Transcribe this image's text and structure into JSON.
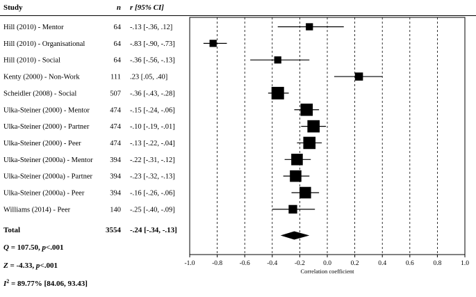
{
  "headers": {
    "study": "Study",
    "n": "n",
    "r": "r [95% CI]"
  },
  "total": {
    "label": "Total",
    "n": "3554",
    "r_text": "-.24 [-.34, -.13]",
    "r": -0.24,
    "lo": -0.34,
    "hi": -0.13
  },
  "stats": {
    "q": {
      "sym": "Q",
      "rest": " = 107.50, ",
      "p": "p",
      "tail": "<.001"
    },
    "z": {
      "sym": "Z",
      "rest": " = -4.33, ",
      "p": "p",
      "tail": "<.001"
    },
    "i2": {
      "sym": "I",
      "sup": "2",
      "rest": " = 89.77% [84.06, 93.43]"
    }
  },
  "chart_data": {
    "type": "forest",
    "xlabel": "Correlation coefficient",
    "xlim": [
      -1.0,
      1.0
    ],
    "ticks": [
      "-1.0",
      "-0.8",
      "-0.6",
      "-0.4",
      "-0.2",
      "0.0",
      "0.2",
      "0.4",
      "0.6",
      "0.8",
      "1.0"
    ],
    "grid": "dashed vertical at every tick",
    "studies": [
      {
        "label": "Hill (2010) - Mentor",
        "n": "64",
        "r_text": "-.13 [-.36, .12]",
        "r": -0.13,
        "lo": -0.36,
        "hi": 0.12
      },
      {
        "label": "Hill (2010) - Organisational",
        "n": "64",
        "r_text": "-.83 [-.90, -.73]",
        "r": -0.83,
        "lo": -0.9,
        "hi": -0.73
      },
      {
        "label": "Hill (2010) - Social",
        "n": "64",
        "r_text": "-.36 [-.56, -.13]",
        "r": -0.36,
        "lo": -0.56,
        "hi": -0.13
      },
      {
        "label": "Kenty (2000) - Non-Work",
        "n": "111",
        "r_text": ".23 [.05, .40]",
        "r": 0.23,
        "lo": 0.05,
        "hi": 0.4
      },
      {
        "label": "Scheidler (2008) - Social",
        "n": "507",
        "r_text": "-.36 [-.43, -.28]",
        "r": -0.36,
        "lo": -0.43,
        "hi": -0.28
      },
      {
        "label": "Ulka-Steiner (2000) - Mentor",
        "n": "474",
        "r_text": "-.15 [-.24, -.06]",
        "r": -0.15,
        "lo": -0.24,
        "hi": -0.06
      },
      {
        "label": "Ulka-Steiner (2000) - Partner",
        "n": "474",
        "r_text": "-.10 [-.19, -.01]",
        "r": -0.1,
        "lo": -0.19,
        "hi": -0.01
      },
      {
        "label": "Ulka-Steiner (2000) - Peer",
        "n": "474",
        "r_text": "-.13 [-.22, -.04]",
        "r": -0.13,
        "lo": -0.22,
        "hi": -0.04
      },
      {
        "label": "Ulka-Steiner (2000a) - Mentor",
        "n": "394",
        "r_text": "-.22 [-.31, -.12]",
        "r": -0.22,
        "lo": -0.31,
        "hi": -0.12
      },
      {
        "label": "Ulka-Steiner (2000a) - Partner",
        "n": "394",
        "r_text": "-.23 [-.32, -.13]",
        "r": -0.23,
        "lo": -0.32,
        "hi": -0.13
      },
      {
        "label": "Ulka-Steiner (2000a) - Peer",
        "n": "394",
        "r_text": "-.16 [-.26, -.06]",
        "r": -0.16,
        "lo": -0.26,
        "hi": -0.06
      },
      {
        "label": "Williams (2014) - Peer",
        "n": "140",
        "r_text": "-.25 [-.40, -.09]",
        "r": -0.25,
        "lo": -0.4,
        "hi": -0.09
      }
    ]
  }
}
